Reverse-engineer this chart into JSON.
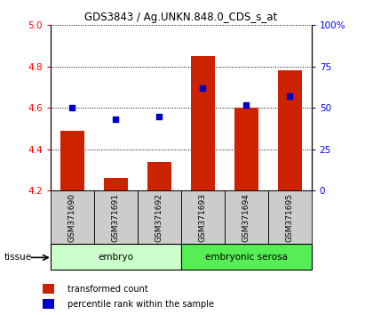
{
  "title": "GDS3843 / Ag.UNKN.848.0_CDS_s_at",
  "samples": [
    "GSM371690",
    "GSM371691",
    "GSM371692",
    "GSM371693",
    "GSM371694",
    "GSM371695"
  ],
  "red_values": [
    4.49,
    4.26,
    4.34,
    4.85,
    4.6,
    4.78
  ],
  "blue_values": [
    50,
    43,
    45,
    62,
    52,
    57
  ],
  "ylim_left": [
    4.2,
    5.0
  ],
  "ylim_right": [
    0,
    100
  ],
  "yticks_left": [
    4.2,
    4.4,
    4.6,
    4.8,
    5.0
  ],
  "yticks_right": [
    0,
    25,
    50,
    75,
    100
  ],
  "ytick_labels_right": [
    "0",
    "25",
    "50",
    "75",
    "100%"
  ],
  "bar_color": "#cc2200",
  "dot_color": "#0000cc",
  "tissue_groups": [
    {
      "label": "embryo",
      "indices": [
        0,
        1,
        2
      ],
      "color": "#ccffcc"
    },
    {
      "label": "embryonic serosa",
      "indices": [
        3,
        4,
        5
      ],
      "color": "#55ee55"
    }
  ],
  "legend_items": [
    {
      "label": "transformed count",
      "color": "#cc2200"
    },
    {
      "label": "percentile rank within the sample",
      "color": "#0000cc"
    }
  ],
  "tissue_label": "tissue",
  "bar_bottom": 4.2,
  "background_color": "#ffffff",
  "sample_bg_color": "#cccccc"
}
